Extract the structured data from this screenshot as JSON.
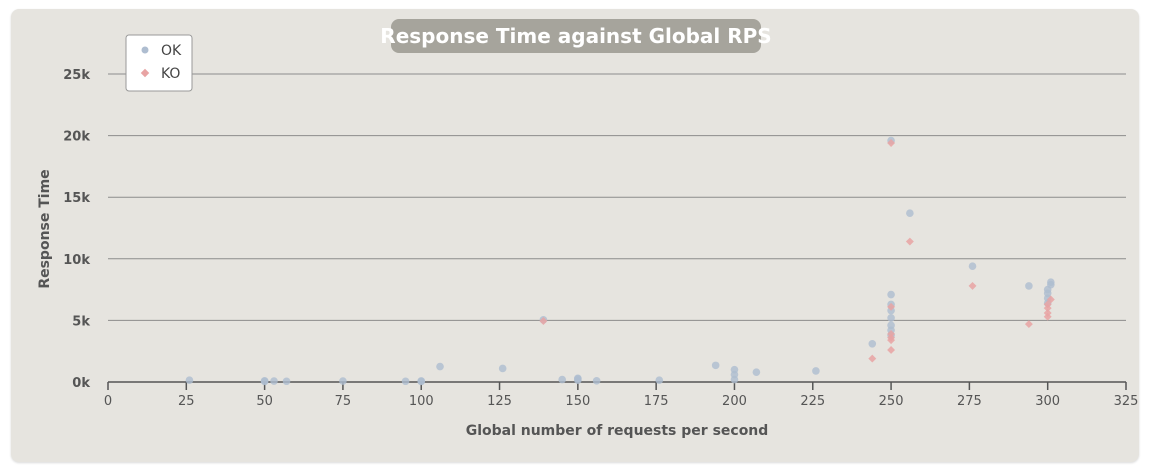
{
  "chart_data": {
    "type": "scatter",
    "title": "Response Time against Global RPS",
    "xlabel": "Global number of requests per second",
    "ylabel": "Response Time",
    "xlim": [
      0,
      325
    ],
    "ylim": [
      0,
      25000
    ],
    "x_ticks": [
      "0",
      "25",
      "50",
      "75",
      "100",
      "125",
      "150",
      "175",
      "200",
      "225",
      "250",
      "275",
      "300",
      "325"
    ],
    "y_ticks": [
      "0k",
      "5k",
      "10k",
      "15k",
      "20k",
      "25k"
    ],
    "grid": true,
    "legend_position": "top-left",
    "series": [
      {
        "name": "OK",
        "color": "#aebdd0",
        "marker": "circle",
        "points": [
          [
            26,
            150
          ],
          [
            50,
            50
          ],
          [
            50,
            100
          ],
          [
            53,
            80
          ],
          [
            57,
            60
          ],
          [
            75,
            80
          ],
          [
            95,
            60
          ],
          [
            100,
            50
          ],
          [
            100,
            90
          ],
          [
            106,
            1250
          ],
          [
            126,
            1100
          ],
          [
            139,
            5050
          ],
          [
            145,
            200
          ],
          [
            150,
            150
          ],
          [
            150,
            250
          ],
          [
            150,
            300
          ],
          [
            156,
            100
          ],
          [
            176,
            150
          ],
          [
            194,
            1350
          ],
          [
            200,
            200
          ],
          [
            200,
            600
          ],
          [
            200,
            1000
          ],
          [
            207,
            800
          ],
          [
            226,
            900
          ],
          [
            244,
            3100
          ],
          [
            250,
            3800
          ],
          [
            250,
            4200
          ],
          [
            250,
            4600
          ],
          [
            250,
            5200
          ],
          [
            250,
            5800
          ],
          [
            250,
            6300
          ],
          [
            250,
            7100
          ],
          [
            250,
            19600
          ],
          [
            256,
            13700
          ],
          [
            276,
            9400
          ],
          [
            294,
            7800
          ],
          [
            300,
            6400
          ],
          [
            300,
            6800
          ],
          [
            300,
            7200
          ],
          [
            300,
            7500
          ],
          [
            301,
            7900
          ],
          [
            301,
            8100
          ]
        ]
      },
      {
        "name": "KO",
        "color": "#e8a3a3",
        "marker": "diamond",
        "points": [
          [
            139,
            4950
          ],
          [
            244,
            1900
          ],
          [
            250,
            2600
          ],
          [
            250,
            3400
          ],
          [
            250,
            3600
          ],
          [
            250,
            3900
          ],
          [
            250,
            6100
          ],
          [
            250,
            19400
          ],
          [
            256,
            11400
          ],
          [
            276,
            7800
          ],
          [
            294,
            4700
          ],
          [
            300,
            5300
          ],
          [
            300,
            5600
          ],
          [
            300,
            6000
          ],
          [
            300,
            6300
          ],
          [
            301,
            6700
          ]
        ]
      }
    ]
  }
}
